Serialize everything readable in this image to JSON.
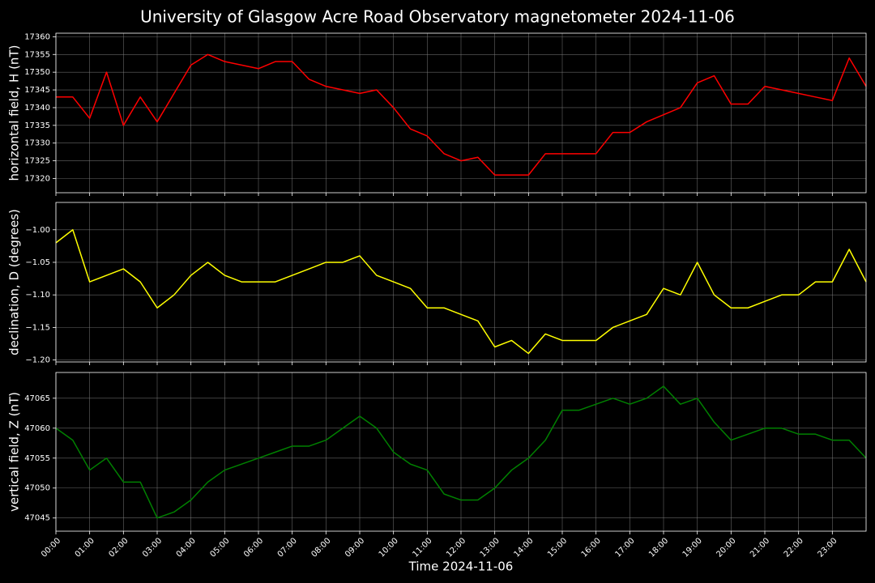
{
  "chart_data": [
    {
      "type": "line",
      "title": "University of Glasgow Acre Road Observatory magnetometer 2024-11-06",
      "ylabel": "horizontal field, H (nT)",
      "color": "#ff0000",
      "grid": true,
      "x": [
        0,
        0.5,
        1,
        1.5,
        2,
        2.5,
        3,
        3.5,
        4,
        4.5,
        5,
        5.5,
        6,
        6.5,
        7,
        7.5,
        8,
        8.5,
        9,
        9.5,
        10,
        10.5,
        11,
        11.5,
        12,
        12.5,
        13,
        13.5,
        14,
        14.5,
        15,
        15.5,
        16,
        16.5,
        17,
        17.5,
        18,
        18.5,
        19,
        19.5,
        20,
        20.5,
        21,
        21.5,
        22,
        22.5,
        23,
        23.5,
        24
      ],
      "values": [
        17343,
        17343,
        17337,
        17350,
        17335,
        17343,
        17336,
        17344,
        17352,
        17355,
        17353,
        17352,
        17351,
        17353,
        17353,
        17348,
        17346,
        17345,
        17344,
        17345,
        17340,
        17334,
        17332,
        17327,
        17325,
        17326,
        17321,
        17321,
        17321,
        17327,
        17327,
        17327,
        17327,
        17333,
        17333,
        17336,
        17338,
        17340,
        17347,
        17349,
        17341,
        17341,
        17346,
        17345,
        17344,
        17343,
        17342,
        17354,
        17346
      ],
      "xlim": [
        0,
        24
      ],
      "ylim": [
        17316,
        17361
      ],
      "yticks": [
        17320,
        17325,
        17330,
        17335,
        17340,
        17345,
        17350,
        17355,
        17360
      ]
    },
    {
      "type": "line",
      "ylabel": "declination, D (degrees)",
      "color": "#ffff00",
      "grid": true,
      "x": [
        0,
        0.5,
        1,
        1.5,
        2,
        2.5,
        3,
        3.5,
        4,
        4.5,
        5,
        5.5,
        6,
        6.5,
        7,
        7.5,
        8,
        8.5,
        9,
        9.5,
        10,
        10.5,
        11,
        11.5,
        12,
        12.5,
        13,
        13.5,
        14,
        14.5,
        15,
        15.5,
        16,
        16.5,
        17,
        17.5,
        18,
        18.5,
        19,
        19.5,
        20,
        20.5,
        21,
        21.5,
        22,
        22.5,
        23,
        23.5,
        24
      ],
      "values": [
        -1.02,
        -1.0,
        -1.08,
        -1.07,
        -1.06,
        -1.08,
        -1.12,
        -1.1,
        -1.07,
        -1.05,
        -1.07,
        -1.08,
        -1.08,
        -1.08,
        -1.07,
        -1.06,
        -1.05,
        -1.05,
        -1.04,
        -1.07,
        -1.08,
        -1.09,
        -1.12,
        -1.12,
        -1.13,
        -1.14,
        -1.18,
        -1.17,
        -1.19,
        -1.16,
        -1.17,
        -1.17,
        -1.17,
        -1.15,
        -1.14,
        -1.13,
        -1.09,
        -1.1,
        -1.05,
        -1.1,
        -1.12,
        -1.12,
        -1.11,
        -1.1,
        -1.1,
        -1.08,
        -1.08,
        -1.03,
        -1.08
      ],
      "xlim": [
        0,
        24
      ],
      "ylim": [
        -1.203,
        -0.958
      ],
      "yticks": [
        {
          "value": -1.2,
          "label": "−1.20"
        },
        {
          "value": -1.15,
          "label": "−1.15"
        },
        {
          "value": -1.1,
          "label": "−1.10"
        },
        {
          "value": -1.05,
          "label": "−1.05"
        },
        {
          "value": -1.0,
          "label": "−1.00"
        }
      ]
    },
    {
      "type": "line",
      "ylabel": "vertical field, Z (nT)",
      "xlabel": "Time 2024-11-06",
      "color": "#008000",
      "grid": true,
      "x": [
        0,
        0.5,
        1,
        1.5,
        2,
        2.5,
        3,
        3.5,
        4,
        4.5,
        5,
        5.5,
        6,
        6.5,
        7,
        7.5,
        8,
        8.5,
        9,
        9.5,
        10,
        10.5,
        11,
        11.5,
        12,
        12.5,
        13,
        13.5,
        14,
        14.5,
        15,
        15.5,
        16,
        16.5,
        17,
        17.5,
        18,
        18.5,
        19,
        19.5,
        20,
        20.5,
        21,
        21.5,
        22,
        22.5,
        23,
        23.5,
        24
      ],
      "values": [
        47060,
        47058,
        47053,
        47055,
        47051,
        47051,
        47045,
        47046,
        47048,
        47051,
        47053,
        47054,
        47055,
        47056,
        47057,
        47057,
        47058,
        47060,
        47062,
        47060,
        47056,
        47054,
        47053,
        47049,
        47048,
        47048,
        47050,
        47053,
        47055,
        47058,
        47063,
        47063,
        47064,
        47065,
        47064,
        47065,
        47067,
        47064,
        47065,
        47061,
        47058,
        47059,
        47060,
        47060,
        47059,
        47059,
        47058,
        47058,
        47055
      ],
      "xlim": [
        0,
        24
      ],
      "ylim": [
        47042.8,
        47069.3
      ],
      "yticks": [
        47045,
        47050,
        47055,
        47060,
        47065
      ],
      "xticks": [
        {
          "value": 0,
          "label": "00:00"
        },
        {
          "value": 1,
          "label": "01:00"
        },
        {
          "value": 2,
          "label": "02:00"
        },
        {
          "value": 3,
          "label": "03:00"
        },
        {
          "value": 4,
          "label": "04:00"
        },
        {
          "value": 5,
          "label": "05:00"
        },
        {
          "value": 6,
          "label": "06:00"
        },
        {
          "value": 7,
          "label": "07:00"
        },
        {
          "value": 8,
          "label": "08:00"
        },
        {
          "value": 9,
          "label": "09:00"
        },
        {
          "value": 10,
          "label": "10:00"
        },
        {
          "value": 11,
          "label": "11:00"
        },
        {
          "value": 12,
          "label": "12:00"
        },
        {
          "value": 13,
          "label": "13:00"
        },
        {
          "value": 14,
          "label": "14:00"
        },
        {
          "value": 15,
          "label": "15:00"
        },
        {
          "value": 16,
          "label": "16:00"
        },
        {
          "value": 17,
          "label": "17:00"
        },
        {
          "value": 18,
          "label": "18:00"
        },
        {
          "value": 19,
          "label": "19:00"
        },
        {
          "value": 20,
          "label": "20:00"
        },
        {
          "value": 21,
          "label": "21:00"
        },
        {
          "value": 22,
          "label": "22:00"
        },
        {
          "value": 23,
          "label": "23:00"
        }
      ]
    }
  ]
}
